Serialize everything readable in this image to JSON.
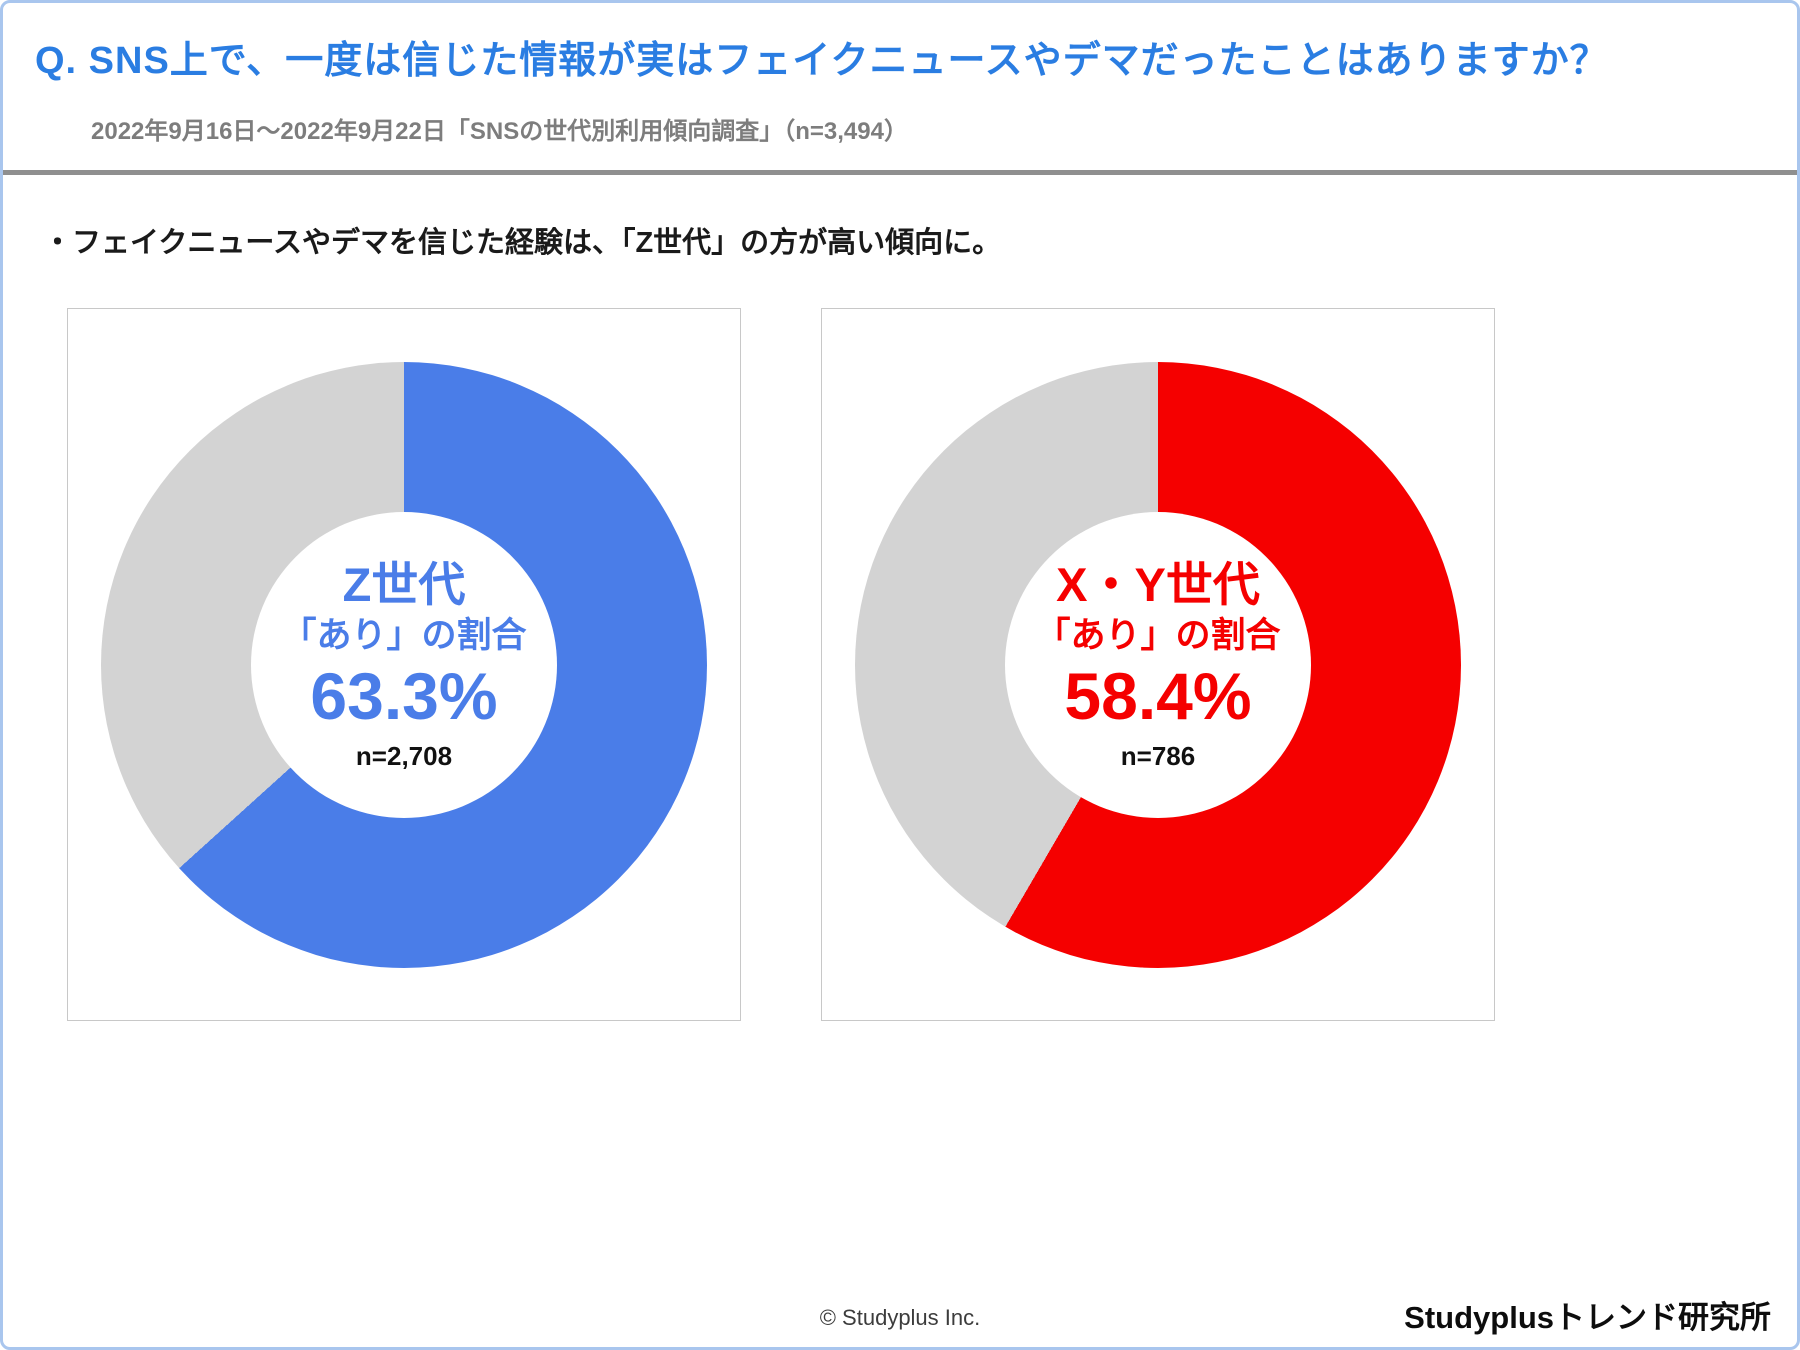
{
  "page": {
    "title": "Q. SNS上で、一度は信じた情報が実はフェイクニュースやデマだったことはありますか？",
    "subtitle": "2022年9月16日～2022年9月22日「SNSの世代別利用傾向調査」（n=3,494）",
    "insight": "・フェイクニュースやデマを信じた経験は、「Z世代」の方が高い傾向に。",
    "footer_copyright": "© Studyplus Inc.",
    "footer_brand": "Studyplusトレンド研究所"
  },
  "colors": {
    "title_blue": "#2a7de2",
    "z_blue": "#4a7de8",
    "xy_red": "#f50000",
    "remainder_gray": "#d3d3d3"
  },
  "chart_data": [
    {
      "type": "pie",
      "donut": true,
      "hole_ratio": 0.5,
      "start_angle": "top",
      "direction": "clockwise",
      "title": "Z世代",
      "center_label": "「あり」の割合",
      "value": 63.3,
      "value_label": "63.3%",
      "n_label": "n=2,708",
      "slices": [
        {
          "name": "あり",
          "value": 63.3,
          "color": "#4a7de8"
        },
        {
          "name": "",
          "value": 36.7,
          "color": "#d3d3d3"
        }
      ],
      "legend": "none"
    },
    {
      "type": "pie",
      "donut": true,
      "hole_ratio": 0.5,
      "start_angle": "top",
      "direction": "clockwise",
      "title": "X・Y世代",
      "center_label": "「あり」の割合",
      "value": 58.4,
      "value_label": "58.4%",
      "n_label": "n=786",
      "slices": [
        {
          "name": "あり",
          "value": 58.4,
          "color": "#f50000"
        },
        {
          "name": "",
          "value": 41.6,
          "color": "#d3d3d3"
        }
      ],
      "legend": "none"
    }
  ]
}
